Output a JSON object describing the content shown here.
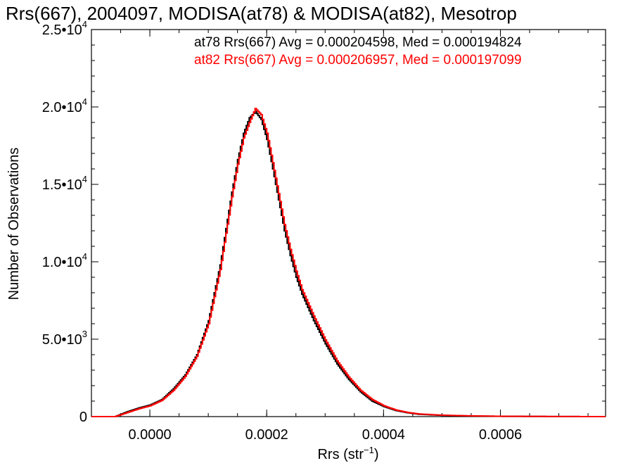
{
  "chart_data": {
    "type": "line",
    "title": "Rrs(667), 2004097, MODISA(at78) & MODISA(at82), Mesotrop",
    "xlabel": "Rrs (str",
    "xlabel_sup": "−1",
    "xlabel_close": ")",
    "ylabel": "Number of Observations",
    "xlim": [
      -0.0001,
      0.00078
    ],
    "ylim": [
      0,
      25000
    ],
    "x_ticks": [
      {
        "value": 0.0,
        "label": "0.0000"
      },
      {
        "value": 0.0002,
        "label": "0.0002"
      },
      {
        "value": 0.0004,
        "label": "0.0004"
      },
      {
        "value": 0.0006,
        "label": "0.0006"
      }
    ],
    "y_ticks": [
      {
        "value": 0,
        "label": "0",
        "sup": ""
      },
      {
        "value": 5000,
        "label": "5.0•10",
        "sup": "3"
      },
      {
        "value": 10000,
        "label": "1.0•10",
        "sup": "4"
      },
      {
        "value": 15000,
        "label": "1.5•10",
        "sup": "4"
      },
      {
        "value": 20000,
        "label": "2.0•10",
        "sup": "4"
      },
      {
        "value": 25000,
        "label": "2.5•10",
        "sup": "4"
      }
    ],
    "legend": [
      {
        "text": "at78 Rrs(667) Avg = 0.000204598, Med = 0.000194824",
        "color": "#000000"
      },
      {
        "text": "at82 Rrs(667) Avg = 0.000206957, Med = 0.000197099",
        "color": "#ff0000"
      }
    ],
    "series": [
      {
        "color": "#000000",
        "x": [
          -0.0001,
          -6e-05,
          -4e-05,
          -2e-05,
          0.0,
          2e-05,
          4e-05,
          6e-05,
          8e-05,
          0.0001,
          0.00012,
          0.00014,
          0.00015,
          0.00016,
          0.00017,
          0.00018,
          0.00019,
          0.0002,
          0.00021,
          0.00022,
          0.00023,
          0.00024,
          0.00025,
          0.00026,
          0.00028,
          0.0003,
          0.00032,
          0.00034,
          0.00036,
          0.00038,
          0.0004,
          0.00042,
          0.00044,
          0.00046,
          0.0005,
          0.00055,
          0.0006,
          0.0007,
          0.00078
        ],
        "y": [
          0,
          0,
          300,
          550,
          750,
          1100,
          1800,
          2700,
          4000,
          6200,
          9800,
          14500,
          16600,
          18300,
          19300,
          19700,
          19200,
          17900,
          16000,
          14000,
          12000,
          10400,
          9000,
          7900,
          6200,
          4700,
          3400,
          2400,
          1600,
          1000,
          650,
          400,
          250,
          150,
          80,
          40,
          20,
          5,
          0
        ]
      },
      {
        "color": "#ff0000",
        "x": [
          -0.0001,
          -6e-05,
          -4e-05,
          -2e-05,
          0.0,
          2e-05,
          4e-05,
          6e-05,
          8e-05,
          0.0001,
          0.00012,
          0.00014,
          0.00015,
          0.00016,
          0.00017,
          0.00018,
          0.00019,
          0.0002,
          0.00021,
          0.00022,
          0.00023,
          0.00024,
          0.00025,
          0.00026,
          0.00028,
          0.0003,
          0.00032,
          0.00034,
          0.00036,
          0.00038,
          0.0004,
          0.00042,
          0.00044,
          0.00046,
          0.0005,
          0.00055,
          0.0006,
          0.0007,
          0.00078
        ],
        "y": [
          0,
          0,
          250,
          500,
          700,
          1050,
          1700,
          2600,
          3900,
          6000,
          9500,
          14200,
          16300,
          18000,
          19000,
          19900,
          19500,
          18300,
          16400,
          14400,
          12400,
          10800,
          9400,
          8200,
          6500,
          4950,
          3600,
          2550,
          1700,
          1100,
          700,
          430,
          270,
          170,
          90,
          45,
          20,
          5,
          0
        ]
      }
    ]
  }
}
